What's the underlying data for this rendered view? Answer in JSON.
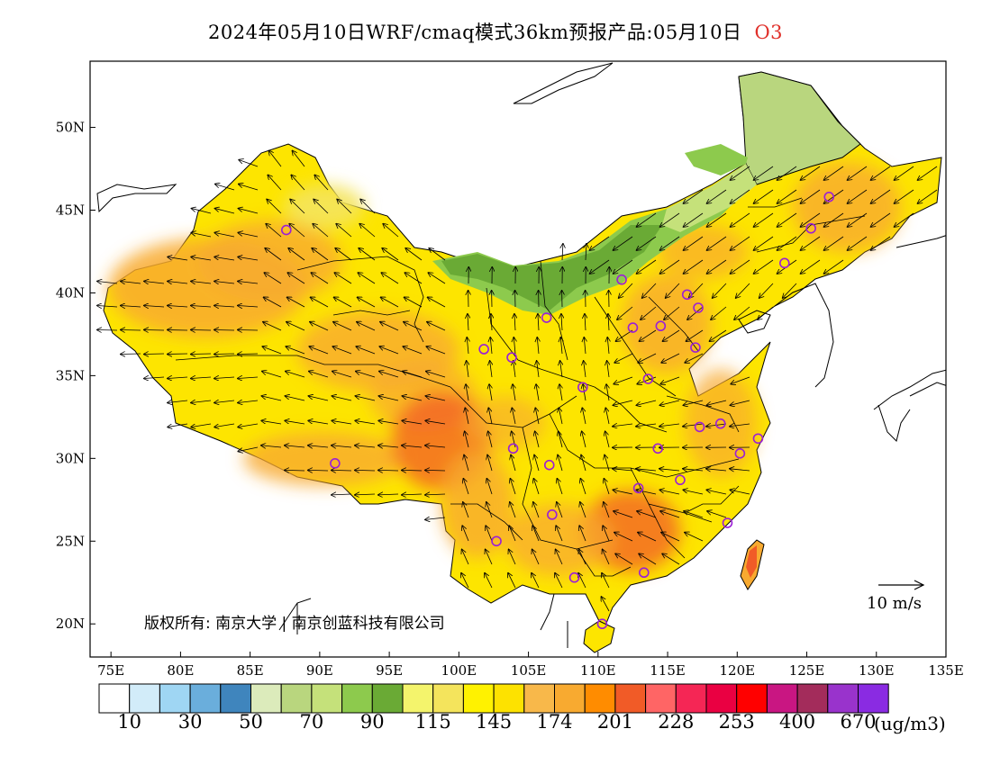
{
  "title": {
    "main": "2024年05月10日WRF/cmaq模式36km预报产品:05月10日",
    "pollutant": "O3"
  },
  "axes": {
    "lon_ticks": [
      "75E",
      "80E",
      "85E",
      "90E",
      "95E",
      "100E",
      "105E",
      "110E",
      "115E",
      "120E",
      "125E",
      "130E",
      "135E"
    ],
    "lat_ticks": [
      "20N",
      "25N",
      "30N",
      "35N",
      "40N",
      "45N",
      "50N"
    ],
    "lon_range": [
      73.5,
      135
    ],
    "lat_range": [
      18,
      54
    ]
  },
  "legend": {
    "colors": [
      "#ffffff",
      "#d2ecf9",
      "#9fd6f3",
      "#6aaedc",
      "#3f85bd",
      "#dcebbb",
      "#b9d67e",
      "#c5e17a",
      "#8dca4d",
      "#6aaa35",
      "#f4f46c",
      "#f4e45c",
      "#fff200",
      "#fde200",
      "#f8b84a",
      "#f8aa30",
      "#ff8c00",
      "#f15b27",
      "#ff6565",
      "#f52655",
      "#ea0042",
      "#ff0000",
      "#c91682",
      "#a32c5b",
      "#9933cc",
      "#8a2be2"
    ],
    "labels": [
      "10",
      "30",
      "50",
      "70",
      "90",
      "115",
      "145",
      "174",
      "201",
      "228",
      "253",
      "400",
      "670"
    ],
    "unit": "(ug/m3)"
  },
  "copyright": "版权所有: 南京大学 | 南京创蓝科技有限公司",
  "wind_scale_label": "10 m/s",
  "stations": [
    [
      87.6,
      43.8
    ],
    [
      91.1,
      29.7
    ],
    [
      101.8,
      36.6
    ],
    [
      103.8,
      36.1
    ],
    [
      106.3,
      38.5
    ],
    [
      103.9,
      30.6
    ],
    [
      106.5,
      29.6
    ],
    [
      106.7,
      26.6
    ],
    [
      102.7,
      25.0
    ],
    [
      108.3,
      22.8
    ],
    [
      110.3,
      20.0
    ],
    [
      113.3,
      23.1
    ],
    [
      112.9,
      28.2
    ],
    [
      114.3,
      30.6
    ],
    [
      115.9,
      28.7
    ],
    [
      117.3,
      31.9
    ],
    [
      118.8,
      32.1
    ],
    [
      120.2,
      30.3
    ],
    [
      121.5,
      31.2
    ],
    [
      119.3,
      26.1
    ],
    [
      113.6,
      34.8
    ],
    [
      112.5,
      37.9
    ],
    [
      114.5,
      38.0
    ],
    [
      117.0,
      36.7
    ],
    [
      116.4,
      39.9
    ],
    [
      117.2,
      39.1
    ],
    [
      111.7,
      40.8
    ],
    [
      123.4,
      41.8
    ],
    [
      125.3,
      43.9
    ],
    [
      126.6,
      45.8
    ],
    [
      108.9,
      34.3
    ]
  ]
}
